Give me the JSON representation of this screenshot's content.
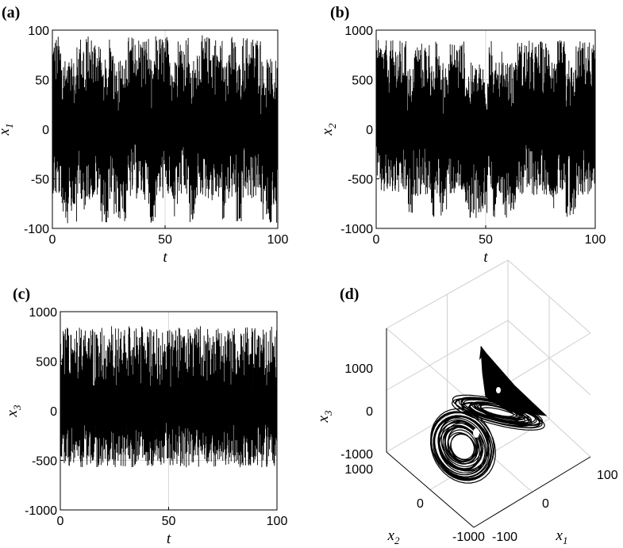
{
  "chart_data": [
    {
      "panel": "(a)",
      "type": "line",
      "xlabel": "t",
      "ylabel": "x1",
      "ylabel_main": "x",
      "ylabel_sub": "1",
      "xlim": [
        0,
        100
      ],
      "ylim": [
        -100,
        100
      ],
      "xticks": [
        "0",
        "50",
        "100"
      ],
      "yticks": [
        "100",
        "50",
        "0",
        "-50",
        "-100"
      ],
      "grid": true,
      "series": [
        {
          "x": [
            0,
            100
          ],
          "y_range": [
            -95,
            95
          ],
          "description_values": [
            -95,
            -50,
            0,
            50,
            95
          ]
        }
      ]
    },
    {
      "panel": "(b)",
      "type": "line",
      "xlabel": "t",
      "ylabel": "x2",
      "ylabel_main": "x",
      "ylabel_sub": "2",
      "xlim": [
        0,
        100
      ],
      "ylim": [
        -1000,
        1000
      ],
      "xticks": [
        "0",
        "50",
        "100"
      ],
      "yticks": [
        "1000",
        "500",
        "0",
        "-500",
        "-1000"
      ],
      "grid": true,
      "series": [
        {
          "x": [
            0,
            100
          ],
          "y_range": [
            -900,
            900
          ],
          "description_values": [
            -900,
            -500,
            0,
            500,
            900
          ]
        }
      ]
    },
    {
      "panel": "(c)",
      "type": "line",
      "xlabel": "t",
      "ylabel": "x3",
      "ylabel_main": "x",
      "ylabel_sub": "3",
      "xlim": [
        0,
        100
      ],
      "ylim": [
        -1000,
        1000
      ],
      "xticks": [
        "0",
        "50",
        "100"
      ],
      "yticks": [
        "1000",
        "500",
        "0",
        "-500",
        "-1000"
      ],
      "grid": true,
      "series": [
        {
          "x": [
            0,
            100
          ],
          "y_range": [
            -600,
            900
          ],
          "description_values": [
            -600,
            -300,
            0,
            400,
            900
          ]
        }
      ]
    },
    {
      "panel": "(d)",
      "type": "line",
      "projection": "3d",
      "xlabel_main": "x",
      "xlabel_sub": "1",
      "ylabel_main": "x",
      "ylabel_sub": "2",
      "zlabel_main": "x",
      "zlabel_sub": "3",
      "x1lim": [
        -100,
        100
      ],
      "x2lim": [
        -1000,
        1000
      ],
      "x3lim": [
        -1000,
        1000
      ],
      "x1ticks": [
        "-100",
        "0",
        "100"
      ],
      "x2ticks": [
        "-1000",
        "0",
        "1000"
      ],
      "x3ticks": [
        "1000",
        "0",
        "-1000"
      ],
      "grid": true
    }
  ]
}
